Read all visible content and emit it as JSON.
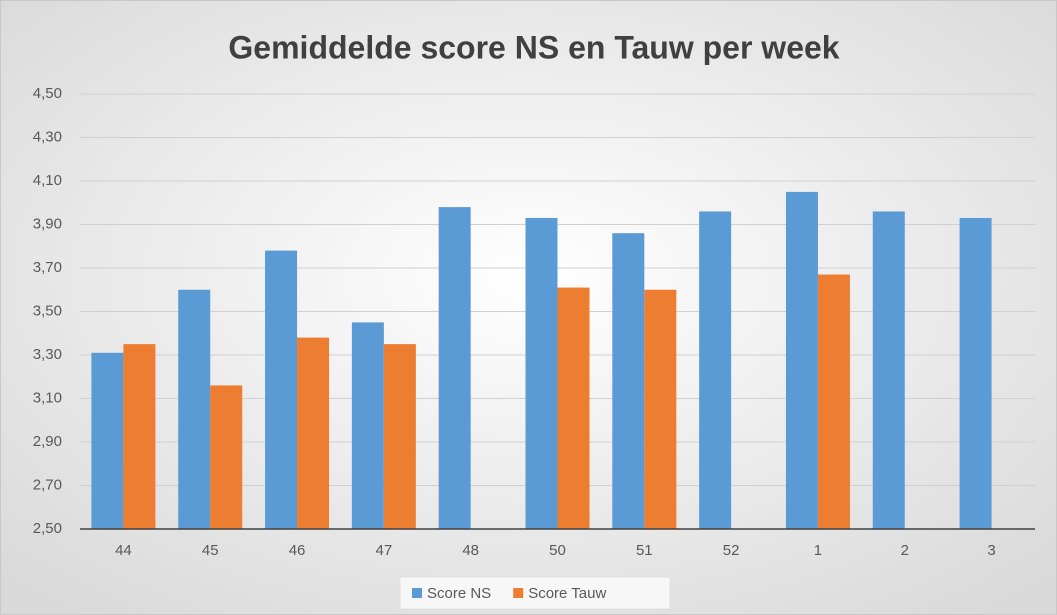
{
  "chart_data": {
    "type": "bar",
    "title": "Gemiddelde score NS en Tauw per week",
    "categories": [
      "44",
      "45",
      "46",
      "47",
      "48",
      "50",
      "51",
      "52",
      "1",
      "2",
      "3"
    ],
    "series": [
      {
        "name": "Score NS",
        "color": "#5b9bd5",
        "values": [
          3.31,
          3.6,
          3.78,
          3.45,
          3.98,
          3.93,
          3.86,
          3.96,
          4.05,
          3.96,
          3.93
        ]
      },
      {
        "name": "Score Tauw",
        "color": "#ed7d31",
        "values": [
          3.35,
          3.16,
          3.38,
          3.35,
          null,
          3.61,
          3.6,
          null,
          3.67,
          null,
          null
        ]
      }
    ],
    "ylim": [
      2.5,
      4.5
    ],
    "yticks": [
      {
        "value": 2.5,
        "label": "2,50"
      },
      {
        "value": 2.7,
        "label": "2,70"
      },
      {
        "value": 2.9,
        "label": "2,90"
      },
      {
        "value": 3.1,
        "label": "3,10"
      },
      {
        "value": 3.3,
        "label": "3,30"
      },
      {
        "value": 3.5,
        "label": "3,50"
      },
      {
        "value": 3.7,
        "label": "3,70"
      },
      {
        "value": 3.9,
        "label": "3,90"
      },
      {
        "value": 4.1,
        "label": "4,10"
      },
      {
        "value": 4.3,
        "label": "4,30"
      },
      {
        "value": 4.5,
        "label": "4,50"
      }
    ],
    "grid": true,
    "legend": "bottom"
  }
}
